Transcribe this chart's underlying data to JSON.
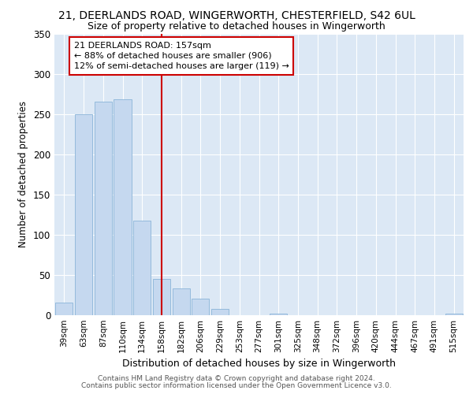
{
  "title1": "21, DEERLANDS ROAD, WINGERWORTH, CHESTERFIELD, S42 6UL",
  "title2": "Size of property relative to detached houses in Wingerworth",
  "xlabel": "Distribution of detached houses by size in Wingerworth",
  "ylabel": "Number of detached properties",
  "categories": [
    "39sqm",
    "63sqm",
    "87sqm",
    "110sqm",
    "134sqm",
    "158sqm",
    "182sqm",
    "206sqm",
    "229sqm",
    "253sqm",
    "277sqm",
    "301sqm",
    "325sqm",
    "348sqm",
    "372sqm",
    "396sqm",
    "420sqm",
    "444sqm",
    "467sqm",
    "491sqm",
    "515sqm"
  ],
  "values": [
    16,
    250,
    265,
    268,
    117,
    45,
    33,
    21,
    8,
    0,
    0,
    2,
    0,
    0,
    0,
    0,
    0,
    0,
    0,
    0,
    2
  ],
  "bar_color": "#c5d8ef",
  "bar_edge_color": "#8ab4d8",
  "vline_index": 5,
  "vline_color": "#cc0000",
  "annotation_text": "21 DEERLANDS ROAD: 157sqm\n← 88% of detached houses are smaller (906)\n12% of semi-detached houses are larger (119) →",
  "annotation_box_color": "#ffffff",
  "annotation_box_edge": "#cc0000",
  "ylim": [
    0,
    350
  ],
  "yticks": [
    0,
    50,
    100,
    150,
    200,
    250,
    300,
    350
  ],
  "footer1": "Contains HM Land Registry data © Crown copyright and database right 2024.",
  "footer2": "Contains public sector information licensed under the Open Government Licence v3.0.",
  "fig_bg_color": "#ffffff",
  "plot_bg_color": "#dce8f5"
}
